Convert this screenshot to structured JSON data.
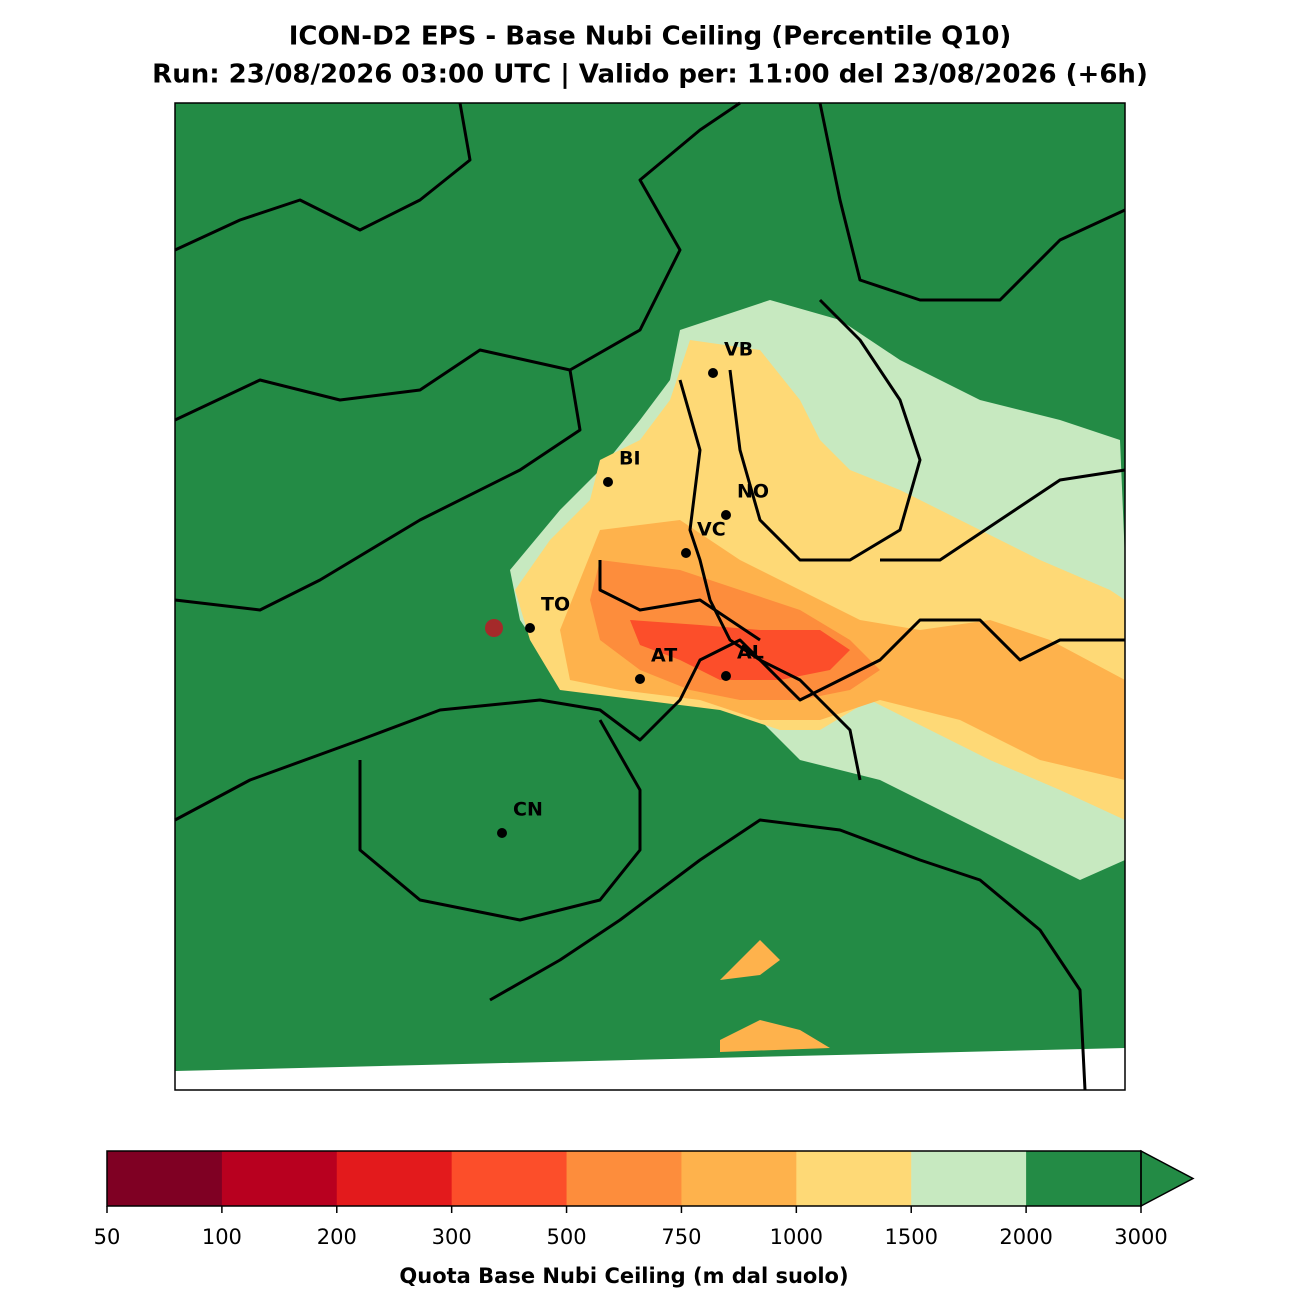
{
  "title": "ICON-D2 EPS - Base Nubi Ceiling (Percentile Q10)",
  "subtitle": "Run: 23/08/2026 03:00 UTC | Valido per: 11:00 del 23/08/2026 (+6h)",
  "cities": [
    "VB",
    "BI",
    "NO",
    "VC",
    "TO",
    "AT",
    "AL",
    "CN"
  ],
  "colorbar": {
    "label": "Quota Base Nubi Ceiling (m dal suolo)",
    "boundaries": [
      50,
      100,
      200,
      300,
      500,
      750,
      1000,
      1500,
      2000,
      3000
    ],
    "colors": [
      "#7f0023",
      "#b8001f",
      "#e31a1c",
      "#fc4e2a",
      "#fd8d3c",
      "#feb24c",
      "#fed976",
      "#c7e9c0",
      "#238b45"
    ],
    "extend_color": "#238b45"
  }
}
